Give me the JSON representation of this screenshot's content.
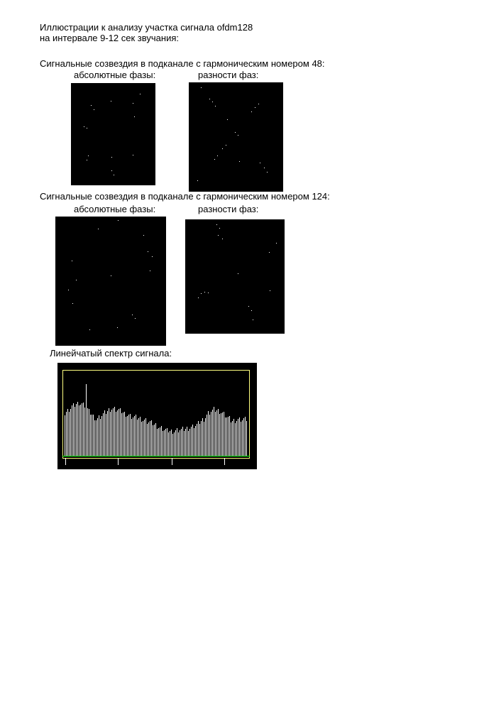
{
  "header": {
    "line1": "Иллюстрации к анализу участка сигнала ofdm128",
    "line2": "на интервале 9-12 сек звучания:"
  },
  "section48": {
    "title": "Сигнальные созвездия в подканале с гармоническим номером 48:",
    "label_abs": "абсолютные фазы:",
    "label_diff": "разности фаз:"
  },
  "section124": {
    "title": "Сигнальные созвездия в подканале с гармоническим номером 124:",
    "label_abs": "абсолютные фазы:",
    "label_diff": "разности фаз:"
  },
  "spectrum": {
    "title": "Линейчатый спектр сигнала:"
  },
  "colors": {
    "background": "#000000",
    "points": "#ffffff",
    "frame": "#ffff80",
    "baseline": "#00ff00"
  }
}
